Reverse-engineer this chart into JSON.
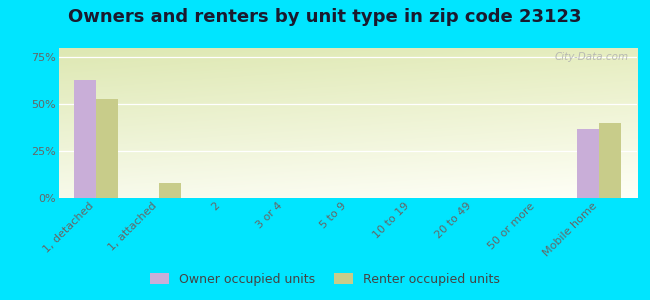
{
  "title": "Owners and renters by unit type in zip code 23123",
  "categories": [
    "1, detached",
    "1, attached",
    "2",
    "3 or 4",
    "5 to 9",
    "10 to 19",
    "20 to 49",
    "50 or more",
    "Mobile home"
  ],
  "owner_values": [
    63,
    0,
    0,
    0,
    0,
    0,
    0,
    0,
    37
  ],
  "renter_values": [
    53,
    8,
    0,
    0,
    0,
    0,
    0,
    0,
    40
  ],
  "owner_color": "#c9aed8",
  "renter_color": "#c8cc8a",
  "background_color": "#00e5ff",
  "ylim": [
    0,
    80
  ],
  "yticks": [
    0,
    25,
    50,
    75
  ],
  "ytick_labels": [
    "0%",
    "25%",
    "50%",
    "75%"
  ],
  "legend_owner": "Owner occupied units",
  "legend_renter": "Renter occupied units",
  "bar_width": 0.35,
  "title_fontsize": 13,
  "tick_fontsize": 8,
  "legend_fontsize": 9
}
